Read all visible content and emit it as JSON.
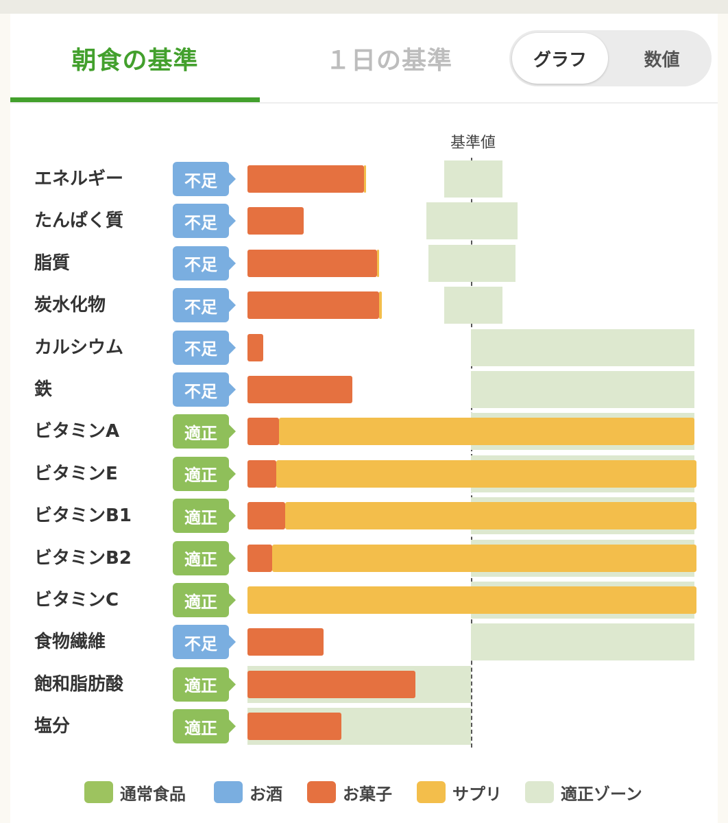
{
  "tabs": {
    "breakfast": "朝食の基準",
    "day": "１日の基準"
  },
  "toggle": {
    "graph": "グラフ",
    "value": "数値"
  },
  "reference_label": "基準値",
  "colors": {
    "normal_food": "#9dc35f",
    "alcohol": "#7aaee0",
    "snack": "#e57140",
    "supplement": "#f3be4b",
    "zone": "#dde8cf",
    "status_low": "#7aaee0",
    "status_ok": "#8fbf5a"
  },
  "legend": [
    {
      "label": "通常食品",
      "color": "#9dc35f"
    },
    {
      "label": "お酒",
      "color": "#7aaee0"
    },
    {
      "label": "お菓子",
      "color": "#e57140"
    },
    {
      "label": "サプリ",
      "color": "#f3be4b"
    },
    {
      "label": "適正ゾーン",
      "color": "#dde8cf"
    }
  ],
  "chart_data": {
    "type": "bar",
    "orientation": "horizontal",
    "reference": "基準値",
    "categories": [
      "エネルギー",
      "たんぱく質",
      "脂質",
      "炭水化物",
      "カルシウム",
      "鉄",
      "ビタミンA",
      "ビタミンE",
      "ビタミンB1",
      "ビタミンB2",
      "ビタミンC",
      "食物繊維",
      "飽和脂肪酸",
      "塩分"
    ],
    "status": [
      "不足",
      "不足",
      "不足",
      "不足",
      "不足",
      "不足",
      "適正",
      "適正",
      "適正",
      "適正",
      "適正",
      "不足",
      "適正",
      "適正"
    ],
    "status_kind": [
      "low",
      "low",
      "low",
      "low",
      "low",
      "low",
      "ok",
      "ok",
      "ok",
      "ok",
      "ok",
      "low",
      "ok",
      "ok"
    ],
    "series": [
      {
        "name": "お菓子",
        "values": [
          52,
          25,
          58,
          59,
          7,
          47,
          14,
          13,
          17,
          11,
          0,
          34,
          75,
          42
        ]
      },
      {
        "name": "サプリ",
        "values": [
          1,
          0,
          1,
          1,
          0,
          0,
          186,
          188,
          184,
          190,
          201,
          0,
          0,
          0
        ]
      }
    ],
    "zone": [
      {
        "from": 88,
        "to": 114
      },
      {
        "from": 80,
        "to": 121
      },
      {
        "from": 81,
        "to": 120
      },
      {
        "from": 88,
        "to": 114
      },
      {
        "from": 100,
        "to": 200
      },
      {
        "from": 100,
        "to": 200
      },
      {
        "from": 100,
        "to": 200
      },
      {
        "from": 100,
        "to": 200
      },
      {
        "from": 100,
        "to": 200
      },
      {
        "from": 100,
        "to": 200
      },
      {
        "from": 100,
        "to": 200
      },
      {
        "from": 100,
        "to": 200
      },
      {
        "from": 0,
        "to": 100
      },
      {
        "from": 0,
        "to": 100
      }
    ],
    "xlim": [
      0,
      201
    ]
  }
}
